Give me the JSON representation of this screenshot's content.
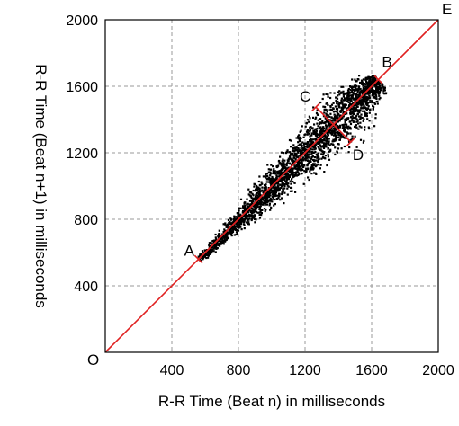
{
  "chart_data": {
    "type": "scatter",
    "xlabel": "R-R Time (Beat n) in milliseconds",
    "ylabel": "R-R Time (Beat n+1) in milliseconds",
    "xlim": [
      0,
      2000
    ],
    "ylim": [
      0,
      2000
    ],
    "x_ticks": [
      "400",
      "800",
      "1200",
      "1600",
      "2000"
    ],
    "y_ticks": [
      "400",
      "800",
      "1200",
      "1600",
      "2000"
    ],
    "grid": true,
    "point_color": "#000000",
    "line_color": "#e02020",
    "identity_line": {
      "from": [
        0,
        0
      ],
      "to": [
        2000,
        2000
      ]
    },
    "cloud": {
      "center": [
        1370,
        1370
      ],
      "major_axis_extent": [
        560,
        1640
      ],
      "minor_axis_extent": [
        1270,
        1480
      ],
      "max_half_width_along_perpendicular": 130
    },
    "axes_segments": [
      {
        "from": "A",
        "to": "B"
      },
      {
        "from": "C",
        "to": "D"
      }
    ],
    "labeled_points": [
      {
        "label": "O",
        "x": 0,
        "y": 0
      },
      {
        "label": "A",
        "x": 560,
        "y": 560
      },
      {
        "label": "B",
        "x": 1640,
        "y": 1640
      },
      {
        "label": "C",
        "x": 1265,
        "y": 1475
      },
      {
        "label": "D",
        "x": 1475,
        "y": 1265
      },
      {
        "label": "E",
        "x": 2000,
        "y": 2000
      }
    ]
  }
}
